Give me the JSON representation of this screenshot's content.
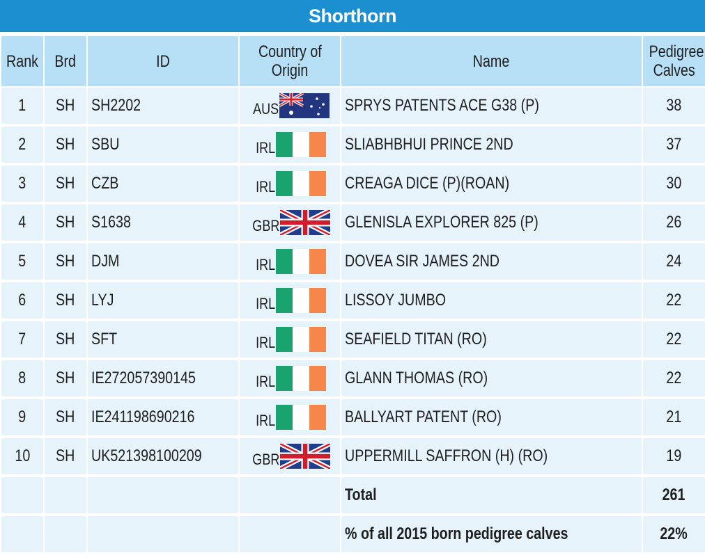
{
  "title": "Shorthorn",
  "headers": {
    "rank": "Rank",
    "brd": "Brd",
    "id": "ID",
    "country_line1": "Country of",
    "country_line2": "Origin",
    "name": "Name",
    "calves_line1": "Pedigree",
    "calves_line2": "Calves"
  },
  "rows": [
    {
      "rank": "1",
      "brd": "SH",
      "id": "SH2202",
      "country": "AUS",
      "flag": "aus-flag-icon",
      "name": "SPRYS PATENTS ACE G38 (P)",
      "calves": "38"
    },
    {
      "rank": "2",
      "brd": "SH",
      "id": "SBU",
      "country": "IRL",
      "flag": "irl-flag-icon",
      "name": "SLIABHBHUI PRINCE 2ND",
      "calves": "37"
    },
    {
      "rank": "3",
      "brd": "SH",
      "id": "CZB",
      "country": "IRL",
      "flag": "irl-flag-icon",
      "name": "CREAGA DICE (P)(ROAN)",
      "calves": "30"
    },
    {
      "rank": "4",
      "brd": "SH",
      "id": "S1638",
      "country": "GBR",
      "flag": "gbr-flag-icon",
      "name": "GLENISLA EXPLORER 825 (P)",
      "calves": "26"
    },
    {
      "rank": "5",
      "brd": "SH",
      "id": "DJM",
      "country": "IRL",
      "flag": "irl-flag-icon",
      "name": "DOVEA SIR JAMES 2ND",
      "calves": "24"
    },
    {
      "rank": "6",
      "brd": "SH",
      "id": "LYJ",
      "country": "IRL",
      "flag": "irl-flag-icon",
      "name": "LISSOY JUMBO",
      "calves": "22"
    },
    {
      "rank": "7",
      "brd": "SH",
      "id": "SFT",
      "country": "IRL",
      "flag": "irl-flag-icon",
      "name": "SEAFIELD TITAN (RO)",
      "calves": "22"
    },
    {
      "rank": "8",
      "brd": "SH",
      "id": "IE272057390145",
      "country": "IRL",
      "flag": "irl-flag-icon",
      "name": "GLANN THOMAS (RO)",
      "calves": "22"
    },
    {
      "rank": "9",
      "brd": "SH",
      "id": "IE241198690216",
      "country": "IRL",
      "flag": "irl-flag-icon",
      "name": "BALLYART PATENT (RO)",
      "calves": "21"
    },
    {
      "rank": "10",
      "brd": "SH",
      "id": "UK521398100209",
      "country": "GBR",
      "flag": "gbr-flag-icon",
      "name": "UPPERMILL SAFFRON (H) (RO)",
      "calves": "19"
    }
  ],
  "summary": [
    {
      "label": "Total",
      "value": "261"
    },
    {
      "label": "% of all 2015 born pedigree calves",
      "value": "22%"
    }
  ],
  "colors": {
    "title_bg": "#1b8fd0",
    "header_bg": "#b7dff5",
    "row_bg": "#e6f3fb",
    "irl_green": "#1aa36f",
    "irl_orange": "#f5874a"
  }
}
